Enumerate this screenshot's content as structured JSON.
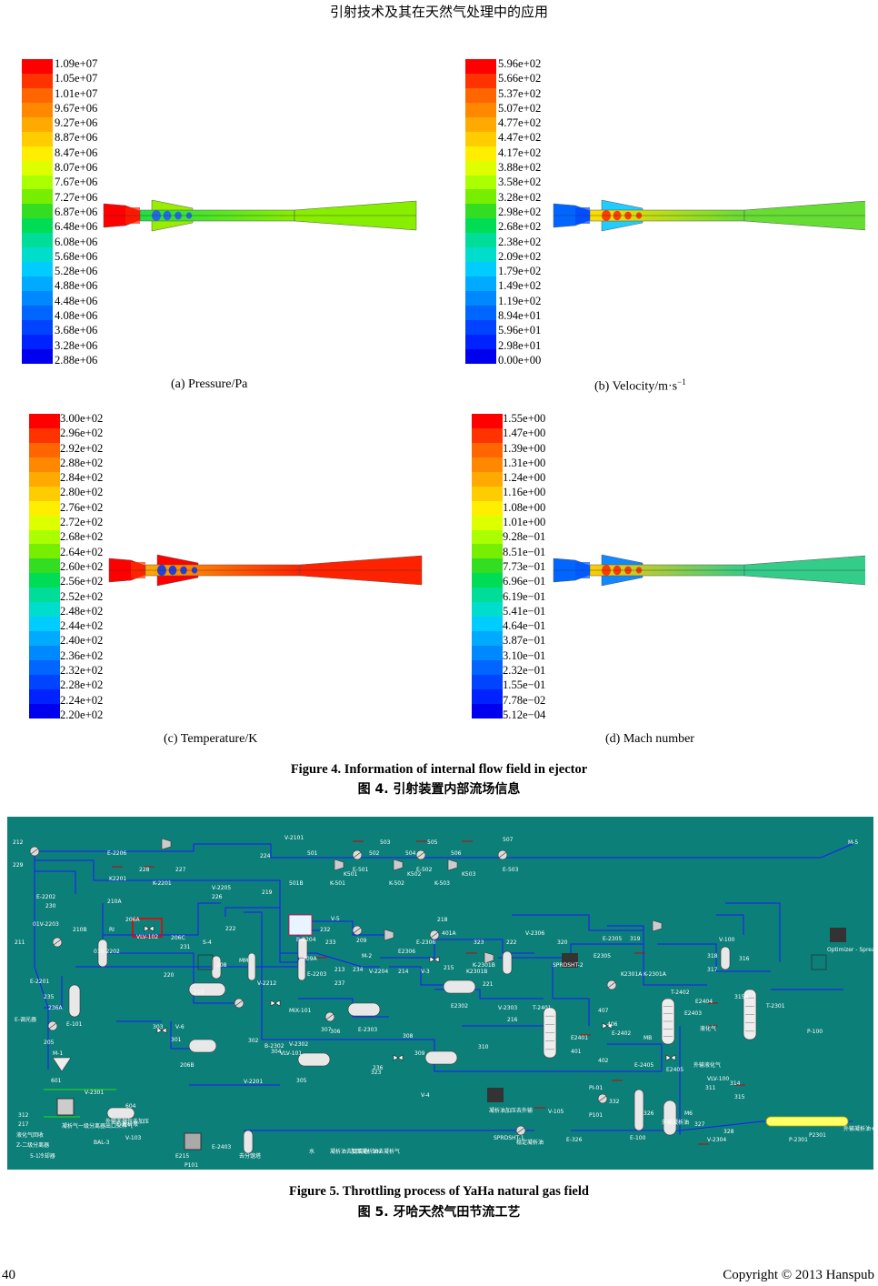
{
  "header": {
    "title": "引射技术及其在天然气处理中的应用"
  },
  "figure4": {
    "caption_en": "Figure 4. Information of internal flow field in ejector",
    "caption_cn": "图 4.  引射装置内部流场信息",
    "panels": [
      {
        "id": "a",
        "caption": "(a) Pressure/Pa",
        "levels": [
          "1.09e+07",
          "1.05e+07",
          "1.01e+07",
          "9.67e+06",
          "9.27e+06",
          "8.87e+06",
          "8.47e+06",
          "8.07e+06",
          "7.67e+06",
          "7.27e+06",
          "6.87e+06",
          "6.48e+06",
          "6.08e+06",
          "5.68e+06",
          "5.28e+06",
          "4.88e+06",
          "4.48e+06",
          "4.08e+06",
          "3.68e+06",
          "3.28e+06",
          "2.88e+06"
        ]
      },
      {
        "id": "b",
        "caption": "(b) Velocity/m·s",
        "caption_sup": "−1",
        "levels": [
          "5.96e+02",
          "5.66e+02",
          "5.37e+02",
          "5.07e+02",
          "4.77e+02",
          "4.47e+02",
          "4.17e+02",
          "3.88e+02",
          "3.58e+02",
          "3.28e+02",
          "2.98e+02",
          "2.68e+02",
          "2.38e+02",
          "2.09e+02",
          "1.79e+02",
          "1.49e+02",
          "1.19e+02",
          "8.94e+01",
          "5.96e+01",
          "2.98e+01",
          "0.00e+00"
        ]
      },
      {
        "id": "c",
        "caption": "(c) Temperature/K",
        "levels": [
          "3.00e+02",
          "2.96e+02",
          "2.92e+02",
          "2.88e+02",
          "2.84e+02",
          "2.80e+02",
          "2.76e+02",
          "2.72e+02",
          "2.68e+02",
          "2.64e+02",
          "2.60e+02",
          "2.56e+02",
          "2.52e+02",
          "2.48e+02",
          "2.44e+02",
          "2.40e+02",
          "2.36e+02",
          "2.32e+02",
          "2.28e+02",
          "2.24e+02",
          "2.20e+02"
        ]
      },
      {
        "id": "d",
        "caption": "(d) Mach number",
        "levels": [
          "1.55e+00",
          "1.47e+00",
          "1.39e+00",
          "1.31e+00",
          "1.24e+00",
          "1.16e+00",
          "1.08e+00",
          "1.01e+00",
          "9.28e−01",
          "8.51e−01",
          "7.73e−01",
          "6.96e−01",
          "6.19e−01",
          "5.41e−01",
          "4.64e−01",
          "3.87e−01",
          "3.10e−01",
          "2.32e−01",
          "1.55e−01",
          "7.78e−02",
          "5.12e−04"
        ]
      }
    ]
  },
  "figure5": {
    "caption_en": "Figure 5. Throttling process of YaHa natural gas field",
    "caption_cn": "图 5.  牙哈天然气田节流工艺",
    "labels": [
      "212",
      "229",
      "E-2202",
      "230",
      "01V-2203",
      "210B",
      "211",
      "E-2201",
      "235",
      "236A",
      "E-调光器",
      "E-101",
      "205",
      "M-1",
      "601",
      "E-2206",
      "K2201",
      "228",
      "K-2201",
      "227",
      "V-2205",
      "226",
      "210A",
      "RI",
      "206A",
      "01V-2202",
      "VLV-102",
      "206C",
      "231",
      "208",
      "S-4",
      "MM",
      "224",
      "219",
      "222",
      "V-2101",
      "501",
      "E-501",
      "502",
      "503",
      "504",
      "E-502",
      "505",
      "506",
      "E-503",
      "507",
      "K-501",
      "K501",
      "K-502",
      "K502",
      "K-503",
      "K503",
      "501B",
      "B-2204",
      "V-5",
      "232",
      "233",
      "209",
      "209A",
      "E-2203",
      "213",
      "M-2",
      "234",
      "237",
      "V-2204",
      "214",
      "V-3",
      "215",
      "218",
      "401A",
      "E2306",
      "E-2306",
      "323",
      "K2301B",
      "K-2301B",
      "221",
      "222",
      "V-2306",
      "320",
      "E-2305",
      "E2305",
      "319",
      "K2301A",
      "K-2301A",
      "318",
      "V-100",
      "316",
      "317",
      "Optimizer - Spreadsheet",
      "SPRDSHT-2",
      "T-2401",
      "E2401",
      "401",
      "402",
      "406",
      "407",
      "E-2402",
      "MB",
      "T-2402",
      "E2403",
      "液化气",
      "E2404",
      "T-2301",
      "E2302",
      "V-2303",
      "216",
      "220",
      "210",
      "V-2212",
      "MIX-101",
      "303",
      "V-6",
      "301",
      "206B",
      "V-2201",
      "302",
      "B-2302",
      "304",
      "VLV-101",
      "305",
      "V-2302",
      "307",
      "306",
      "E-2303",
      "323",
      "236",
      "308",
      "309",
      "V-4",
      "310",
      "V-2301",
      "312",
      "217",
      "凝析气一级分离器出口采样气",
      "液化气回收",
      "外输天然气去加压",
      "BAL-3",
      "E-凝析液",
      "V-103",
      "凝析油加压去外输",
      "V-105",
      "稳定凝析油",
      "SPRDSHT-1",
      "E-326",
      "E-100",
      "326",
      "外输凝析油",
      "M6",
      "327",
      "V-2304",
      "328",
      "P-2301",
      "P2301",
      "外输凝析油+输送",
      "PI-01",
      "P101",
      "332",
      "E-2405",
      "E2405",
      "外输液化气",
      "311",
      "VLV-100",
      "314",
      "315",
      "315A",
      "P-100",
      "E215",
      "P101",
      "E-2403",
      "去分馏塔",
      "5-1冷却器",
      "Z-二级分离器",
      "604",
      "M-5",
      "水",
      "凝析油去焚烧池",
      "加压凝析油去凝析气",
      "507"
    ]
  },
  "footer": {
    "page": "40",
    "copyright": "Copyright © 2013 Hanspub"
  }
}
